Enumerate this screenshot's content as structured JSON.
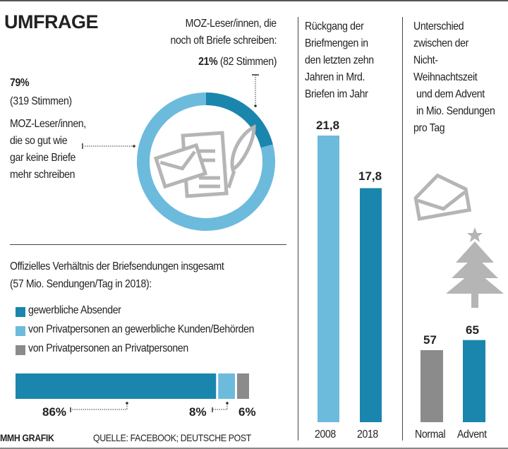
{
  "title": "UMFRAGE",
  "colors": {
    "dark_blue": "#1a86ad",
    "light_blue": "#6cbbdc",
    "gray": "#8b8b8b",
    "icon_gray": "#b5b5b5"
  },
  "survey": {
    "minority_label_1": "MOZ-Leser/innen, die",
    "minority_label_2": "noch oft Briefe schreiben:",
    "minority_pct": "21%",
    "minority_votes": "(82 Stimmen)",
    "majority_pct": "79%",
    "majority_votes": "(319 Stimmen)",
    "majority_label": [
      "MOZ-Leser/innen,",
      "die so gut wie",
      "gar keine Briefe",
      "mehr schreiben"
    ]
  },
  "share": {
    "title_1": "Offizielles Verhältnis der Briefsendungen insgesamt",
    "title_2": "(57 Mio. Sendungen/Tag in 2018):",
    "legend": [
      "gewerbliche Absender",
      "von Privatpersonen an gewerbliche Kunden/Behörden",
      "von Privatpersonen an Privatpersonen"
    ],
    "labels": [
      "86%",
      "8%",
      "6%"
    ]
  },
  "decline": {
    "title": [
      "Rückgang der",
      "Briefmengen in",
      "den letzten zehn",
      "Jahren in Mrd.",
      "Briefen im Jahr"
    ],
    "labels": [
      "21,8",
      "17,8"
    ],
    "years": [
      "2008",
      "2018"
    ]
  },
  "advent": {
    "title": [
      "Unterschied",
      "zwischen der",
      "Nicht-",
      "Weihnachtszeit",
      "und dem Advent",
      "in Mio. Sendungen",
      "pro Tag"
    ],
    "labels": [
      "57",
      "65"
    ],
    "categories": [
      "Normal",
      "Advent"
    ]
  },
  "footer": {
    "credit": "MMH GRAFIK",
    "source": "QUELLE: FACEBOOK; DEUTSCHE POST"
  },
  "chart_data": [
    {
      "type": "pie",
      "donut": true,
      "values": [
        79,
        21
      ],
      "labels": [
        "79% (319 Stimmen)",
        "21% (82 Stimmen)"
      ],
      "colors": [
        "#6cbbdc",
        "#1a86ad"
      ]
    },
    {
      "type": "bar",
      "orientation": "horizontal",
      "stacked": true,
      "title": "Offizielles Verhältnis der Briefsendungen insgesamt (57 Mio. Sendungen/Tag in 2018):",
      "series": [
        {
          "name": "gewerbliche Absender",
          "values": [
            86
          ]
        },
        {
          "name": "von Privatpersonen an gewerbliche Kunden/Behörden",
          "values": [
            8
          ]
        },
        {
          "name": "von Privatpersonen an Privatpersonen",
          "values": [
            6
          ]
        }
      ]
    },
    {
      "type": "bar",
      "title": "Rückgang der Briefmengen in den letzten zehn Jahren in Mrd. Briefen im Jahr",
      "categories": [
        "2008",
        "2018"
      ],
      "values": [
        21.8,
        17.8
      ],
      "ylim": [
        0,
        21.8
      ],
      "colors": [
        "#6cbbdc",
        "#1a86ad"
      ]
    },
    {
      "type": "bar",
      "title": "Unterschied zwischen der Nicht-Weihnachtszeit und dem Advent in Mio. Sendungen pro Tag",
      "categories": [
        "Normal",
        "Advent"
      ],
      "values": [
        57,
        65
      ],
      "colors": [
        "#8b8b8b",
        "#1a86ad"
      ]
    }
  ]
}
